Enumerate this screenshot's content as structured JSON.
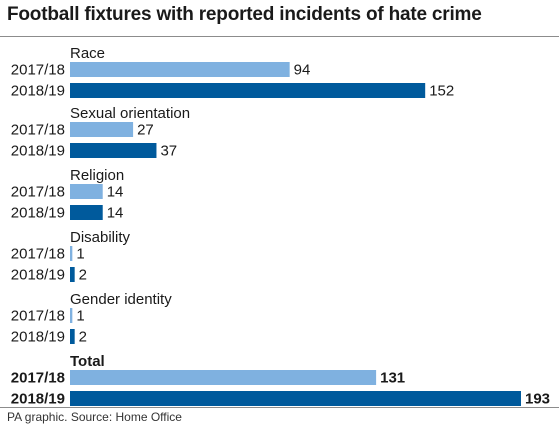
{
  "title": "Football fixtures with reported incidents of hate crime",
  "source": "PA graphic. Source: Home Office",
  "chart_data": {
    "type": "bar",
    "orientation": "horizontal",
    "title": "Football fixtures with reported incidents of hate crime",
    "series": [
      {
        "name": "2017/18",
        "color": "#7fb1e0"
      },
      {
        "name": "2018/19",
        "color": "#005a9c"
      }
    ],
    "groups": [
      {
        "label": "Race",
        "values": [
          94,
          152
        ],
        "bold": false
      },
      {
        "label": "Sexual orientation",
        "values": [
          27,
          37
        ],
        "bold": false
      },
      {
        "label": "Religion",
        "values": [
          14,
          14
        ],
        "bold": false
      },
      {
        "label": "Disability",
        "values": [
          1,
          2
        ],
        "bold": false
      },
      {
        "label": "Gender identity",
        "values": [
          1,
          2
        ],
        "bold": false
      },
      {
        "label": "Total",
        "values": [
          131,
          193
        ],
        "bold": true
      }
    ],
    "xlim": [
      0,
      193
    ],
    "grid": false,
    "legend": "none"
  }
}
